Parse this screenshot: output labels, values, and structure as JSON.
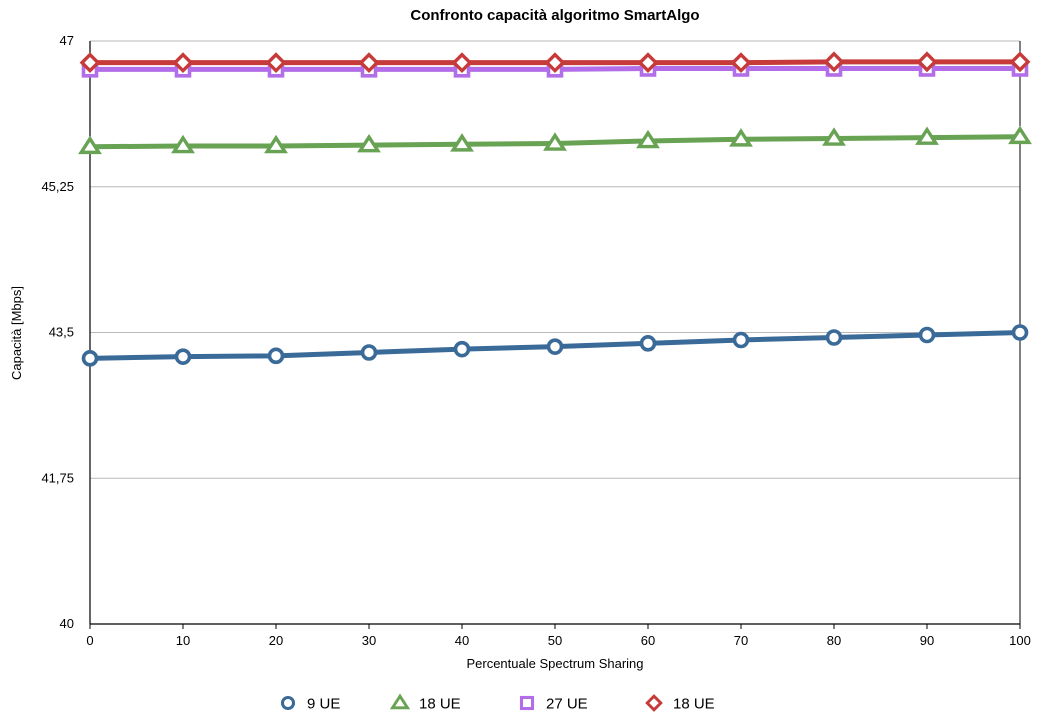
{
  "chart_data": {
    "type": "line",
    "title": "Confronto capacità algoritmo SmartAlgo",
    "xlabel": "Percentuale Spectrum Sharing",
    "ylabel": "Capacità [Mbps]",
    "x": [
      0,
      10,
      20,
      30,
      40,
      50,
      60,
      70,
      80,
      90,
      100
    ],
    "x_tick_labels": [
      "0",
      "10",
      "20",
      "30",
      "40",
      "50",
      "60",
      "70",
      "80",
      "90",
      "100"
    ],
    "ylim": [
      40,
      47
    ],
    "y_ticks": [
      40,
      41.75,
      43.5,
      45.25,
      47
    ],
    "y_tick_labels": [
      "40",
      "41,75",
      "43,5",
      "45,25",
      "47"
    ],
    "grid": true,
    "legend_position": "bottom",
    "series": [
      {
        "name": "9 UE",
        "marker": "circle",
        "color": "#3a6a98",
        "values": [
          43.19,
          43.21,
          43.22,
          43.26,
          43.3,
          43.33,
          43.37,
          43.41,
          43.44,
          43.47,
          43.5
        ]
      },
      {
        "name": "18 UE",
        "marker": "triangle",
        "color": "#68a253",
        "values": [
          45.73,
          45.74,
          45.74,
          45.75,
          45.76,
          45.77,
          45.8,
          45.82,
          45.83,
          45.84,
          45.85
        ]
      },
      {
        "name": "27 UE",
        "marker": "square",
        "color": "#b26ee8",
        "values": [
          46.66,
          46.66,
          46.66,
          46.66,
          46.66,
          46.66,
          46.67,
          46.67,
          46.67,
          46.67,
          46.67
        ]
      },
      {
        "name": "18 UE",
        "marker": "diamond",
        "color": "#c63a3a",
        "values": [
          46.74,
          46.74,
          46.74,
          46.74,
          46.74,
          46.74,
          46.74,
          46.74,
          46.75,
          46.75,
          46.75
        ]
      }
    ]
  }
}
